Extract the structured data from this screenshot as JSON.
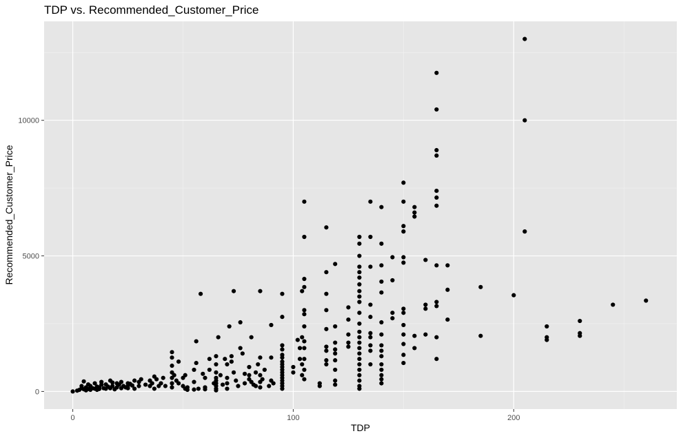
{
  "chart_data": {
    "type": "scatter",
    "title": "TDP vs. Recommended_Customer_Price",
    "xlabel": "TDP",
    "ylabel": "Recommended_Customer_Price",
    "xlim": [
      -13,
      274
    ],
    "ylim": [
      -650,
      13650
    ],
    "xticks": [
      0,
      100,
      200
    ],
    "yticks": [
      0,
      5000,
      10000
    ],
    "xtick_labels": [
      "0",
      "100",
      "200"
    ],
    "ytick_labels": [
      "0",
      "5000",
      "10000"
    ],
    "grid": true,
    "panel_color": "#e6e6e6",
    "point_color": "#000000",
    "points": [
      [
        0,
        0
      ],
      [
        2,
        30
      ],
      [
        3,
        60
      ],
      [
        4,
        120
      ],
      [
        4,
        200
      ],
      [
        5,
        370
      ],
      [
        5,
        80
      ],
      [
        6,
        40
      ],
      [
        6,
        150
      ],
      [
        7,
        260
      ],
      [
        7,
        90
      ],
      [
        8,
        60
      ],
      [
        8,
        200
      ],
      [
        9,
        120
      ],
      [
        10,
        100
      ],
      [
        10,
        300
      ],
      [
        11,
        60
      ],
      [
        11,
        180
      ],
      [
        12,
        90
      ],
      [
        12,
        150
      ],
      [
        13,
        250
      ],
      [
        13,
        350
      ],
      [
        14,
        120
      ],
      [
        15,
        100
      ],
      [
        15,
        260
      ],
      [
        16,
        180
      ],
      [
        17,
        120
      ],
      [
        17,
        400
      ],
      [
        18,
        200
      ],
      [
        18,
        330
      ],
      [
        19,
        80
      ],
      [
        20,
        150
      ],
      [
        20,
        300
      ],
      [
        21,
        250
      ],
      [
        22,
        120
      ],
      [
        22,
        350
      ],
      [
        23,
        200
      ],
      [
        24,
        150
      ],
      [
        25,
        200
      ],
      [
        25,
        120
      ],
      [
        25,
        300
      ],
      [
        26,
        280
      ],
      [
        27,
        220
      ],
      [
        28,
        100
      ],
      [
        28,
        400
      ],
      [
        30,
        350
      ],
      [
        30,
        200
      ],
      [
        31,
        450
      ],
      [
        33,
        250
      ],
      [
        35,
        200
      ],
      [
        35,
        400
      ],
      [
        36,
        300
      ],
      [
        37,
        100
      ],
      [
        37,
        550
      ],
      [
        38,
        450
      ],
      [
        39,
        200
      ],
      [
        40,
        300
      ],
      [
        41,
        500
      ],
      [
        42,
        200
      ],
      [
        45,
        1450
      ],
      [
        45,
        1250
      ],
      [
        45,
        950
      ],
      [
        45,
        700
      ],
      [
        45,
        500
      ],
      [
        45,
        300
      ],
      [
        45,
        150
      ],
      [
        46,
        600
      ],
      [
        47,
        400
      ],
      [
        48,
        1100
      ],
      [
        48,
        300
      ],
      [
        50,
        500
      ],
      [
        50,
        200
      ],
      [
        51,
        100
      ],
      [
        51,
        600
      ],
      [
        52,
        60
      ],
      [
        52,
        150
      ],
      [
        55,
        800
      ],
      [
        55,
        350
      ],
      [
        55,
        70
      ],
      [
        56,
        1050
      ],
      [
        56,
        1850
      ],
      [
        57,
        100
      ],
      [
        58,
        3600
      ],
      [
        59,
        650
      ],
      [
        60,
        500
      ],
      [
        60,
        150
      ],
      [
        60,
        80
      ],
      [
        62,
        1200
      ],
      [
        62,
        800
      ],
      [
        64,
        300
      ],
      [
        65,
        1300
      ],
      [
        65,
        1000
      ],
      [
        65,
        700
      ],
      [
        65,
        500
      ],
      [
        65,
        400
      ],
      [
        65,
        300
      ],
      [
        65,
        200
      ],
      [
        65,
        100
      ],
      [
        65,
        40
      ],
      [
        66,
        2000
      ],
      [
        67,
        600
      ],
      [
        68,
        250
      ],
      [
        69,
        1200
      ],
      [
        70,
        500
      ],
      [
        70,
        300
      ],
      [
        70,
        100
      ],
      [
        70,
        1000
      ],
      [
        71,
        2400
      ],
      [
        72,
        1300
      ],
      [
        72,
        1100
      ],
      [
        73,
        700
      ],
      [
        73,
        3700
      ],
      [
        74,
        400
      ],
      [
        75,
        200
      ],
      [
        76,
        2550
      ],
      [
        76,
        1600
      ],
      [
        77,
        1400
      ],
      [
        78,
        650
      ],
      [
        78,
        300
      ],
      [
        80,
        900
      ],
      [
        80,
        600
      ],
      [
        80,
        450
      ],
      [
        81,
        350
      ],
      [
        81,
        2000
      ],
      [
        82,
        250
      ],
      [
        83,
        700
      ],
      [
        83,
        200
      ],
      [
        84,
        1000
      ],
      [
        85,
        3700
      ],
      [
        85,
        1250
      ],
      [
        85,
        600
      ],
      [
        85,
        350
      ],
      [
        85,
        150
      ],
      [
        86,
        450
      ],
      [
        87,
        800
      ],
      [
        89,
        200
      ],
      [
        90,
        400
      ],
      [
        90,
        1250
      ],
      [
        90,
        2450
      ],
      [
        91,
        300
      ],
      [
        95,
        3600
      ],
      [
        95,
        2750
      ],
      [
        95,
        1700
      ],
      [
        95,
        1550
      ],
      [
        95,
        1350
      ],
      [
        95,
        1250
      ],
      [
        95,
        1100
      ],
      [
        95,
        1000
      ],
      [
        95,
        900
      ],
      [
        95,
        800
      ],
      [
        95,
        700
      ],
      [
        95,
        600
      ],
      [
        95,
        500
      ],
      [
        95,
        400
      ],
      [
        95,
        300
      ],
      [
        95,
        200
      ],
      [
        95,
        100
      ],
      [
        100,
        900
      ],
      [
        100,
        700
      ],
      [
        102,
        1900
      ],
      [
        103,
        1600
      ],
      [
        103,
        1200
      ],
      [
        104,
        1000
      ],
      [
        104,
        600
      ],
      [
        104,
        3700
      ],
      [
        104,
        2000
      ],
      [
        105,
        7000
      ],
      [
        105,
        5700
      ],
      [
        105,
        4150
      ],
      [
        105,
        3850
      ],
      [
        105,
        3000
      ],
      [
        105,
        2850
      ],
      [
        105,
        2400
      ],
      [
        105,
        1850
      ],
      [
        105,
        1600
      ],
      [
        105,
        1200
      ],
      [
        105,
        800
      ],
      [
        105,
        450
      ],
      [
        112,
        300
      ],
      [
        112,
        200
      ],
      [
        115,
        6050
      ],
      [
        115,
        4400
      ],
      [
        115,
        3600
      ],
      [
        115,
        3000
      ],
      [
        115,
        2300
      ],
      [
        115,
        1650
      ],
      [
        115,
        1500
      ],
      [
        115,
        1150
      ],
      [
        115,
        1000
      ],
      [
        119,
        4700
      ],
      [
        119,
        2400
      ],
      [
        119,
        1800
      ],
      [
        119,
        1550
      ],
      [
        119,
        1400
      ],
      [
        119,
        1150
      ],
      [
        119,
        800
      ],
      [
        119,
        400
      ],
      [
        119,
        250
      ],
      [
        125,
        3100
      ],
      [
        125,
        2650
      ],
      [
        125,
        2100
      ],
      [
        125,
        1800
      ],
      [
        125,
        1650
      ],
      [
        130,
        5700
      ],
      [
        130,
        5450
      ],
      [
        130,
        5000
      ],
      [
        130,
        4600
      ],
      [
        130,
        4400
      ],
      [
        130,
        4200
      ],
      [
        130,
        3950
      ],
      [
        130,
        3700
      ],
      [
        130,
        3500
      ],
      [
        130,
        3300
      ],
      [
        130,
        2900
      ],
      [
        130,
        2500
      ],
      [
        130,
        2200
      ],
      [
        130,
        2000
      ],
      [
        130,
        1800
      ],
      [
        130,
        1600
      ],
      [
        130,
        1400
      ],
      [
        130,
        1200
      ],
      [
        130,
        1000
      ],
      [
        130,
        800
      ],
      [
        130,
        600
      ],
      [
        130,
        400
      ],
      [
        130,
        200
      ],
      [
        130,
        100
      ],
      [
        135,
        7000
      ],
      [
        135,
        5700
      ],
      [
        135,
        4600
      ],
      [
        135,
        3200
      ],
      [
        135,
        2750
      ],
      [
        135,
        2150
      ],
      [
        135,
        2000
      ],
      [
        135,
        1700
      ],
      [
        135,
        1500
      ],
      [
        135,
        1000
      ],
      [
        140,
        6800
      ],
      [
        140,
        5450
      ],
      [
        140,
        4650
      ],
      [
        140,
        4050
      ],
      [
        140,
        3650
      ],
      [
        140,
        2550
      ],
      [
        140,
        2100
      ],
      [
        140,
        1700
      ],
      [
        140,
        1500
      ],
      [
        140,
        1300
      ],
      [
        140,
        1000
      ],
      [
        140,
        800
      ],
      [
        140,
        600
      ],
      [
        140,
        450
      ],
      [
        140,
        300
      ],
      [
        145,
        4950
      ],
      [
        145,
        4100
      ],
      [
        145,
        2900
      ],
      [
        145,
        2700
      ],
      [
        150,
        7700
      ],
      [
        150,
        7000
      ],
      [
        150,
        6100
      ],
      [
        150,
        5900
      ],
      [
        150,
        4950
      ],
      [
        150,
        4750
      ],
      [
        150,
        3050
      ],
      [
        150,
        2900
      ],
      [
        150,
        2450
      ],
      [
        150,
        2100
      ],
      [
        150,
        1750
      ],
      [
        150,
        1350
      ],
      [
        150,
        1050
      ],
      [
        155,
        6800
      ],
      [
        155,
        6600
      ],
      [
        155,
        6450
      ],
      [
        155,
        2050
      ],
      [
        155,
        1600
      ],
      [
        160,
        4850
      ],
      [
        160,
        3200
      ],
      [
        160,
        3050
      ],
      [
        160,
        2100
      ],
      [
        165,
        11750
      ],
      [
        165,
        10400
      ],
      [
        165,
        8900
      ],
      [
        165,
        8700
      ],
      [
        165,
        7400
      ],
      [
        165,
        7150
      ],
      [
        165,
        6850
      ],
      [
        165,
        4650
      ],
      [
        165,
        3300
      ],
      [
        165,
        3150
      ],
      [
        165,
        2000
      ],
      [
        165,
        1200
      ],
      [
        170,
        4650
      ],
      [
        170,
        3750
      ],
      [
        170,
        2650
      ],
      [
        185,
        3850
      ],
      [
        185,
        2050
      ],
      [
        200,
        3550
      ],
      [
        205,
        13000
      ],
      [
        205,
        10000
      ],
      [
        205,
        5900
      ],
      [
        215,
        2400
      ],
      [
        215,
        2000
      ],
      [
        215,
        1900
      ],
      [
        230,
        2600
      ],
      [
        230,
        2150
      ],
      [
        230,
        2050
      ],
      [
        245,
        3200
      ],
      [
        260,
        3350
      ]
    ]
  }
}
